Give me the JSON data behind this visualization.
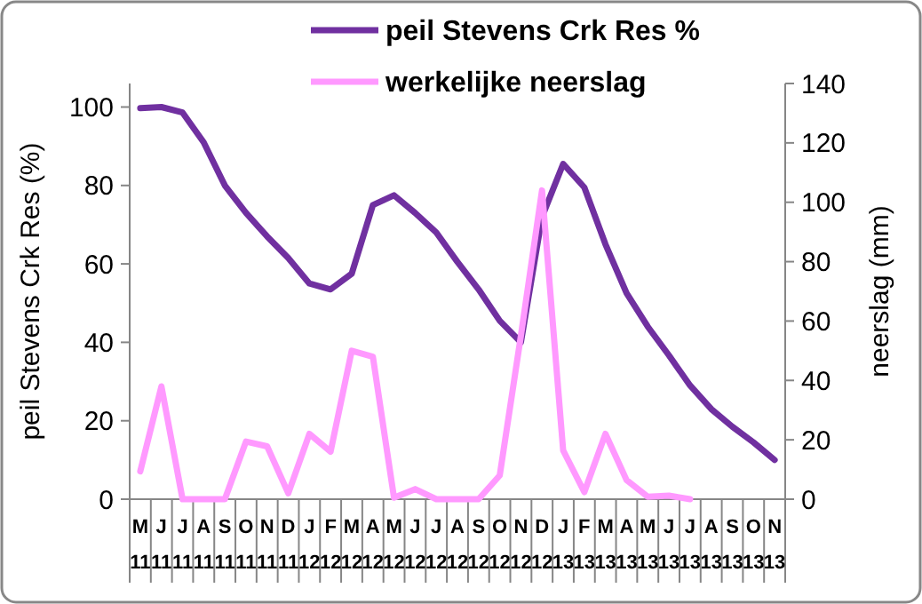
{
  "chart_data": {
    "type": "line",
    "ylabel": "peil Stevens Crk Res (%)",
    "y2label": "neerslag (mm)",
    "categories": [
      "M\n11",
      "J\n11",
      "J\n11",
      "A\n11",
      "S\n11",
      "O\n11",
      "N\n11",
      "D\n11",
      "J\n12",
      "F\n12",
      "M\n12",
      "A\n12",
      "M\n12",
      "J\n12",
      "J\n12",
      "A\n12",
      "S\n12",
      "O\n12",
      "N\n12",
      "D\n12",
      "J\n13",
      "F\n13",
      "M\n13",
      "A\n13",
      "M\n13",
      "J\n13",
      "J\n13",
      "A\n13",
      "S\n13",
      "O\n13",
      "N\n13"
    ],
    "series": [
      {
        "name": "peil Stevens Crk Res %",
        "color": "#7030a0",
        "values": [
          99.7,
          100,
          98.6,
          91,
          80,
          73,
          67,
          61.5,
          55,
          53.5,
          57.5,
          75,
          77.5,
          73,
          68,
          60.5,
          53.5,
          45.5,
          40,
          72,
          85.5,
          79.5,
          65,
          52.5,
          44,
          36.7,
          29,
          23,
          18.5,
          14.5,
          10
        ]
      },
      {
        "name": "werkelijke neerslag",
        "color": "#ff99ff",
        "axis": "y2",
        "values": [
          9.4,
          38,
          0,
          0,
          0,
          19.4,
          17.8,
          2,
          22,
          16,
          50,
          48,
          0.5,
          3.4,
          0,
          0,
          0,
          8,
          55,
          104,
          16.4,
          2.4,
          22,
          6.4,
          0.8,
          1.2,
          0,
          null,
          null,
          null,
          null
        ]
      }
    ],
    "ylim": [
      0,
      106
    ],
    "yticks": [
      0,
      20,
      40,
      60,
      80,
      100
    ],
    "y2lim": [
      0,
      140
    ],
    "y2ticks": [
      0,
      20,
      40,
      60,
      80,
      100,
      120,
      140
    ],
    "legend": "top",
    "grid": false,
    "marker": "none",
    "line_style": "solid"
  }
}
